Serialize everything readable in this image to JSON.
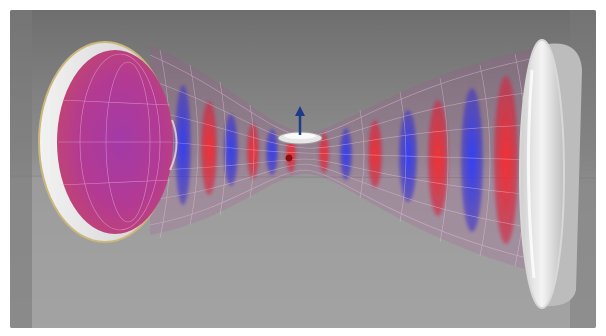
{
  "scene": {
    "subject": "optical-cavity-standing-wave",
    "elements": [
      "left-concave-mirror",
      "right-concave-mirror",
      "gaussian-beam-envelope",
      "standing-wave-fringes",
      "trapped-particle-disk",
      "vertical-axis-arrow"
    ]
  },
  "colors": {
    "background_top": "#7f7f7f",
    "background_bottom": "#a3a3a3",
    "floor_line": "#8c8c8c",
    "fringe_red": "#e0202a",
    "fringe_blue": "#2430d8",
    "fringe_magenta": "#b02a9e",
    "mirror_face": "#e8e8e8",
    "mirror_rim": "#c9b56a",
    "arrow_blue": "#1d3b8a"
  }
}
